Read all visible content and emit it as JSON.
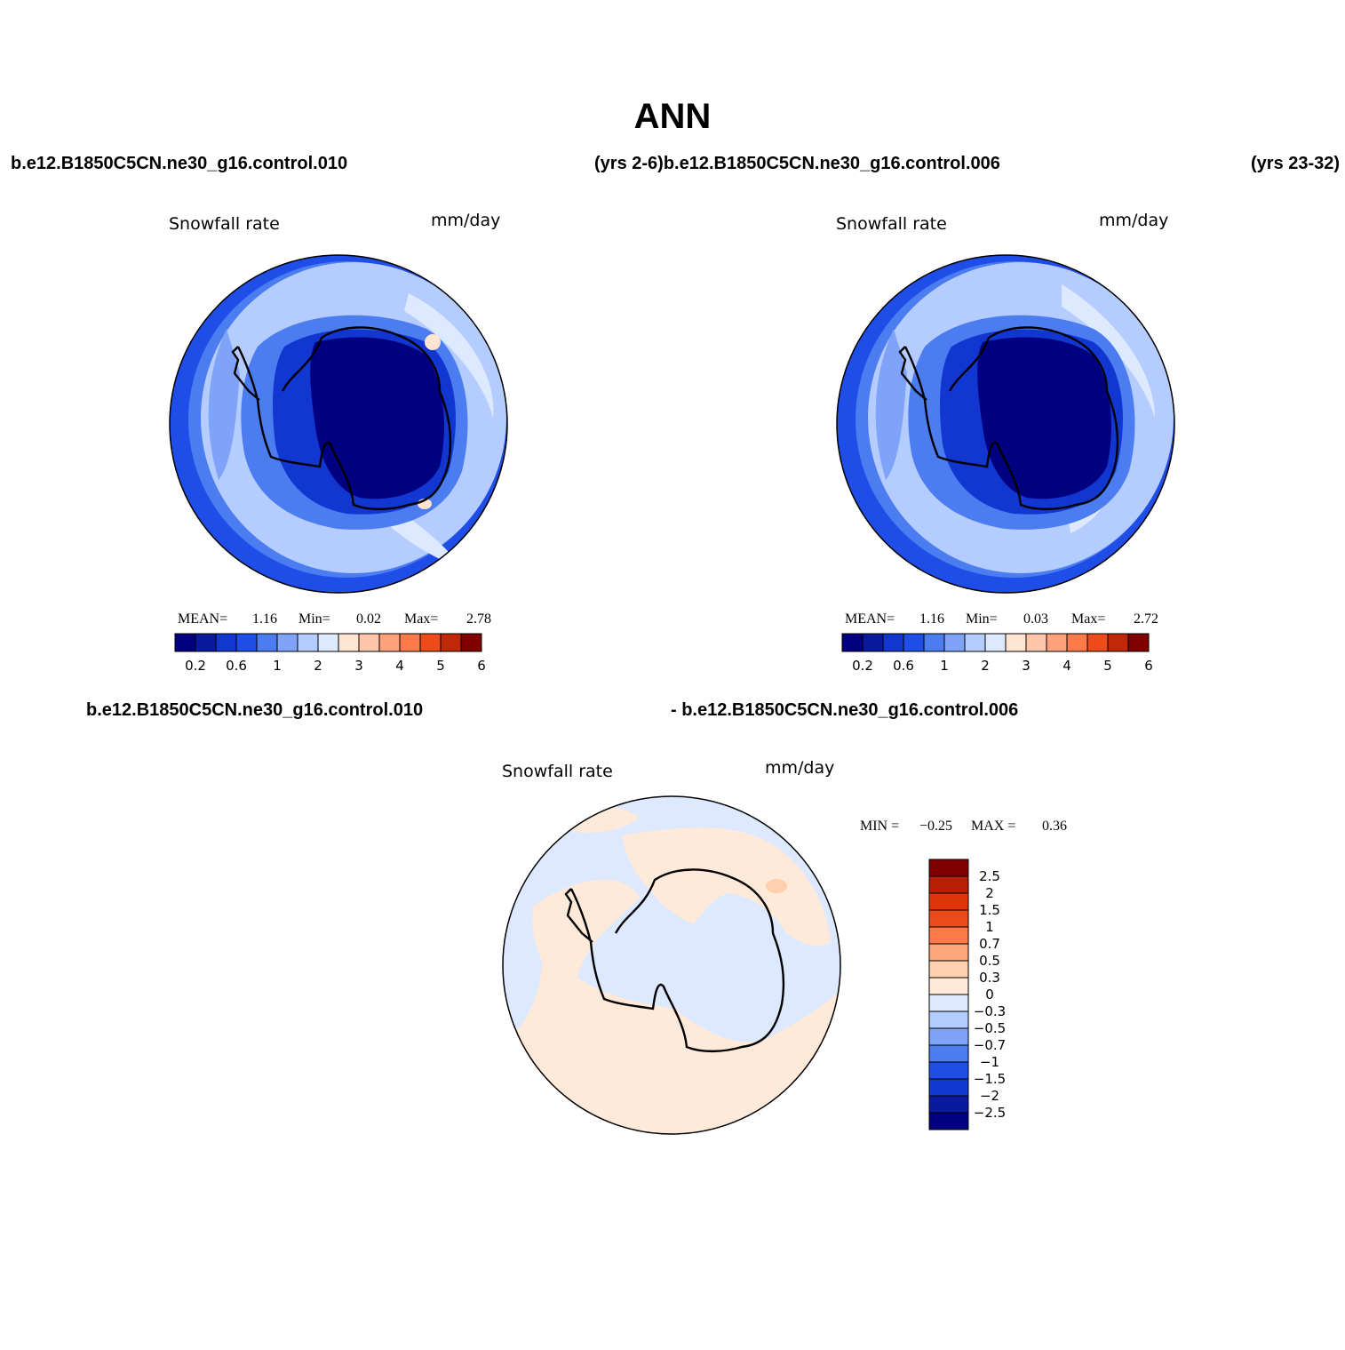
{
  "title": "ANN",
  "header": {
    "case1": "b.e12.B1850C5CN.ne30_g16.control.010",
    "years1_case2": "(yrs 2-6)b.e12.B1850C5CN.ne30_g16.control.006",
    "years2": "(yrs 23-32)",
    "diff_case1": "b.e12.B1850C5CN.ne30_g16.control.010",
    "diff_case2": "- b.e12.B1850C5CN.ne30_g16.control.006"
  },
  "colors": {
    "abs_scale": [
      "#000080",
      "#0a1aa0",
      "#1236d0",
      "#1f4de8",
      "#4b7cf0",
      "#7ea3f8",
      "#b4ccff",
      "#dde9ff",
      "#ffe4d2",
      "#ffc6aa",
      "#ffa27c",
      "#ff7a4a",
      "#ef4a1a",
      "#c02808",
      "#800000"
    ],
    "diff_scale": [
      "#000080",
      "#0a1aa0",
      "#1236d0",
      "#1f4de8",
      "#4b7cf0",
      "#7ea3f8",
      "#b4ccff",
      "#dde9ff",
      "#ffe9d8",
      "#ffcfae",
      "#ffa77c",
      "#ff7a4a",
      "#ec4a1a",
      "#e03508",
      "#b82006",
      "#800000"
    ],
    "ocean_mid": "#b4ccff",
    "ocean_edge": "#4b7cf0",
    "diff_bg": "#dde9ff",
    "diff_pos": "#ffe9d8"
  },
  "chart_data": [
    {
      "type": "heatmap",
      "title": "Snowfall rate",
      "units": "mm/day",
      "projection": "south-polar",
      "stats": {
        "mean_label": "MEAN=",
        "mean": "1.16",
        "min_label": "Min=",
        "min": "0.02",
        "max_label": "Max=",
        "max": "2.78"
      },
      "colorbar_ticks": [
        "0.2",
        "0.6",
        "1",
        "2",
        "3",
        "4",
        "5",
        "6"
      ]
    },
    {
      "type": "heatmap",
      "title": "Snowfall rate",
      "units": "mm/day",
      "projection": "south-polar",
      "stats": {
        "mean_label": "MEAN=",
        "mean": "1.16",
        "min_label": "Min=",
        "min": "0.03",
        "max_label": "Max=",
        "max": "2.72"
      },
      "colorbar_ticks": [
        "0.2",
        "0.6",
        "1",
        "2",
        "3",
        "4",
        "5",
        "6"
      ]
    },
    {
      "type": "heatmap",
      "title": "Snowfall rate",
      "units": "mm/day",
      "projection": "south-polar",
      "stats": {
        "min_label": "MIN =",
        "min": "−0.25",
        "max_label": "MAX =",
        "max": "0.36"
      },
      "colorbar_ticks": [
        "2.5",
        "2",
        "1.5",
        "1",
        "0.7",
        "0.5",
        "0.3",
        "0",
        "−0.3",
        "−0.5",
        "−0.7",
        "−1",
        "−1.5",
        "−2",
        "−2.5"
      ]
    }
  ]
}
